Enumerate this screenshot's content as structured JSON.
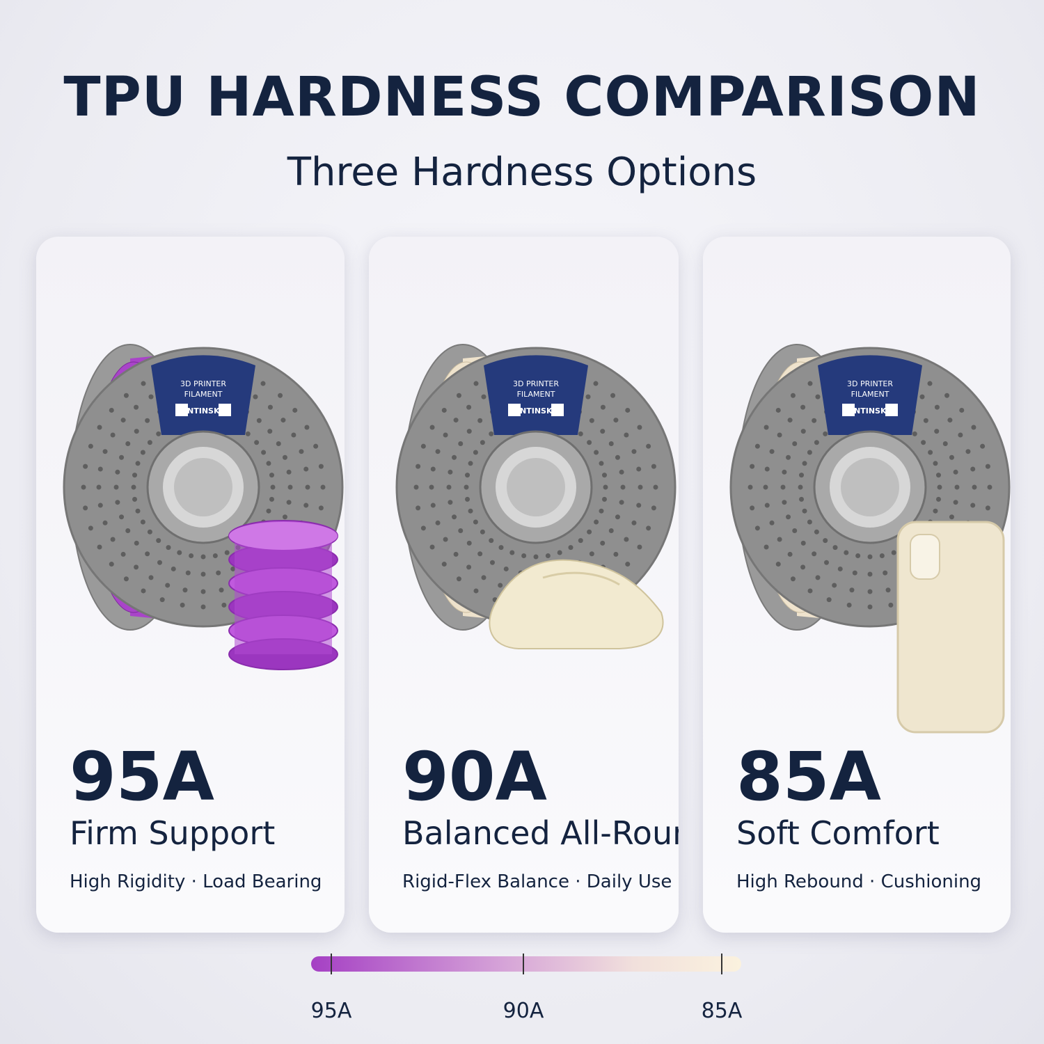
{
  "header": {
    "title": "TPU HARDNESS COMPARISON",
    "subtitle": "Three Hardness Options"
  },
  "spool": {
    "line1": "3D PRINTER",
    "line2": "FILAMENT",
    "brand": "ANTINSKY"
  },
  "cards": [
    {
      "hardness": "95A",
      "name": "Firm Support",
      "features": "High Rigidity · Load Bearing"
    },
    {
      "hardness": "90A",
      "name": "Balanced All-Rounder",
      "features": "Rigid-Flex Balance · Daily Use"
    },
    {
      "hardness": "85A",
      "name": "Soft Comfort",
      "features": "High Rebound · Cushioning"
    }
  ],
  "scale": {
    "labels": [
      "95A",
      "90A",
      "85A"
    ]
  }
}
